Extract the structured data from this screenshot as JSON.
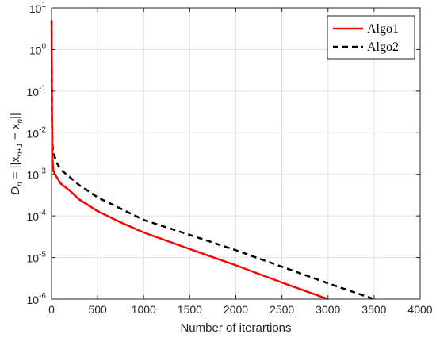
{
  "chart_data": {
    "type": "line",
    "title": "",
    "xlabel": "Number of iterartions",
    "ylabel": {
      "main": "D",
      "sub": "n",
      "rest": " = ||x",
      "sub2": "n+1",
      "rest2": " − x",
      "sub3": "n",
      "end": "||"
    },
    "xlim": [
      0,
      4000
    ],
    "ylim": [
      1e-06,
      10
    ],
    "yscale": "log",
    "grid": true,
    "legend_position": "top-right",
    "x_ticks": [
      "0",
      "500",
      "1000",
      "1500",
      "2000",
      "2500",
      "3000",
      "3500",
      "4000"
    ],
    "y_ticks": [
      {
        "base": "10",
        "exp": "1"
      },
      {
        "base": "10",
        "exp": "0"
      },
      {
        "base": "10",
        "exp": "-1"
      },
      {
        "base": "10",
        "exp": "-2"
      },
      {
        "base": "10",
        "exp": "-3"
      },
      {
        "base": "10",
        "exp": "-4"
      },
      {
        "base": "10",
        "exp": "-5"
      },
      {
        "base": "10",
        "exp": "-6"
      }
    ],
    "series": [
      {
        "name": "Algo1",
        "color": "#ff0000",
        "style": "solid",
        "x": [
          1,
          2,
          3,
          4,
          5,
          8,
          10,
          20,
          50,
          100,
          200,
          300,
          500,
          750,
          1000,
          1500,
          2000,
          2500,
          3000
        ],
        "y": [
          5,
          1,
          0.3,
          0.05,
          0.02,
          0.005,
          0.0025,
          0.0012,
          0.0009,
          0.0006,
          0.0004,
          0.00025,
          0.00013,
          7e-05,
          4e-05,
          1.6e-05,
          6.5e-06,
          2.5e-06,
          1e-06
        ]
      },
      {
        "name": "Algo2",
        "color": "#000000",
        "style": "dashed",
        "x": [
          1,
          2,
          3,
          4,
          5,
          8,
          10,
          20,
          50,
          100,
          200,
          300,
          500,
          750,
          1000,
          1500,
          2000,
          2500,
          3000,
          3500
        ],
        "y": [
          5,
          1,
          0.3,
          0.05,
          0.02,
          0.008,
          0.005,
          0.0035,
          0.002,
          0.0013,
          0.00085,
          0.00055,
          0.00028,
          0.00015,
          8e-05,
          3.5e-05,
          1.5e-05,
          6e-06,
          2.4e-06,
          1e-06
        ]
      }
    ]
  }
}
